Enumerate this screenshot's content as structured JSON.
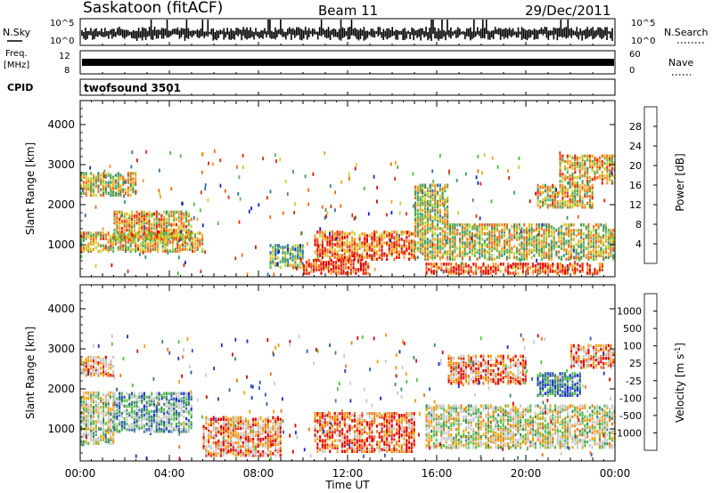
{
  "header": {
    "radar": "Saskatoon (fitACF)",
    "beam": "Beam 11",
    "date": "29/Dec/2011"
  },
  "strips": {
    "nsky_label": "N.Sky",
    "nsky_ticks": [
      "10^5",
      "10^0"
    ],
    "nsearch_label": "N.Search",
    "nsearch_ticks": [
      "10^5",
      "10^0"
    ],
    "freq_label": [
      "Freq.",
      "[MHz]"
    ],
    "freq_ticks": [
      "12",
      "8"
    ],
    "nave_label": "Nave",
    "nave_ticks": [
      "60",
      "0"
    ],
    "cpid_label": "CPID",
    "cpid_value": "twofsound 3501"
  },
  "colors": {
    "power_scale": [
      "#0b24c8",
      "#2b6fb3",
      "#3f8f6e",
      "#56b24a",
      "#c8d028",
      "#f0a020",
      "#f06a10",
      "#e8260c",
      "#e00000"
    ],
    "velocity_scale": [
      "#e00000",
      "#f07818",
      "#f0a000",
      "#c8c8c8",
      "#c8c8c8",
      "#50c040",
      "#3a8a60",
      "#2a5ab0",
      "#1a2ad0"
    ]
  },
  "chart_data": [
    {
      "type": "heatmap",
      "name": "power",
      "ylabel": "Slant Range [km]",
      "yticks": [
        "1000",
        "2000",
        "3000",
        "4000"
      ],
      "ylim": [
        200,
        4600
      ],
      "xlabel": "Time UT",
      "xticks": [
        "00:00",
        "04:00",
        "08:00",
        "12:00",
        "16:00",
        "20:00",
        "00:00"
      ],
      "colorbar_label": "Power [dB]",
      "colorbar_ticks": [
        "4",
        "8",
        "12",
        "16",
        "20",
        "24",
        "28"
      ],
      "regions": [
        {
          "t0": 0.0,
          "t1": 5.5,
          "r0": 800,
          "r1": 1300,
          "level": 0.55
        },
        {
          "t0": 0.0,
          "t1": 2.5,
          "r0": 2200,
          "r1": 2800,
          "level": 0.5
        },
        {
          "t0": 1.5,
          "t1": 5.0,
          "r0": 1100,
          "r1": 1800,
          "level": 0.6
        },
        {
          "t0": 8.5,
          "t1": 10.0,
          "r0": 400,
          "r1": 1000,
          "level": 0.35
        },
        {
          "t0": 10.5,
          "t1": 15.0,
          "r0": 600,
          "r1": 1300,
          "level": 0.75
        },
        {
          "t0": 10.0,
          "t1": 13.0,
          "r0": 250,
          "r1": 600,
          "level": 0.85
        },
        {
          "t0": 15.0,
          "t1": 24.0,
          "r0": 600,
          "r1": 1500,
          "level": 0.5
        },
        {
          "t0": 15.0,
          "t1": 16.5,
          "r0": 1500,
          "r1": 2500,
          "level": 0.45
        },
        {
          "t0": 20.5,
          "t1": 23.0,
          "r0": 1900,
          "r1": 2500,
          "level": 0.55
        },
        {
          "t0": 21.5,
          "t1": 24.0,
          "r0": 2500,
          "r1": 3200,
          "level": 0.6
        },
        {
          "t0": 15.5,
          "t1": 23.5,
          "r0": 250,
          "r1": 500,
          "level": 0.8
        }
      ]
    },
    {
      "type": "heatmap",
      "name": "velocity",
      "ylabel": "Slant Range [km]",
      "yticks": [
        "1000",
        "2000",
        "3000",
        "4000"
      ],
      "ylim": [
        200,
        4600
      ],
      "xlabel": "Time UT",
      "xticks": [
        "00:00",
        "04:00",
        "08:00",
        "12:00",
        "16:00",
        "20:00",
        "00:00"
      ],
      "colorbar_label": "Velocity [m s",
      "colorbar_label_sup": "-1",
      "colorbar_ticks": [
        "1000",
        "500",
        "100",
        "25",
        "-25",
        "-100",
        "-500",
        "-1000"
      ],
      "regions": [
        {
          "t0": 0.0,
          "t1": 1.5,
          "r0": 600,
          "r1": 1900,
          "level": 0.5
        },
        {
          "t0": 0.0,
          "t1": 1.5,
          "r0": 2300,
          "r1": 2800,
          "level": 0.3
        },
        {
          "t0": 1.5,
          "t1": 5.0,
          "r0": 900,
          "r1": 1900,
          "level": 0.65
        },
        {
          "t0": 5.5,
          "t1": 9.0,
          "r0": 300,
          "r1": 1300,
          "level": 0.25
        },
        {
          "t0": 10.5,
          "t1": 15.0,
          "r0": 400,
          "r1": 1400,
          "level": 0.15
        },
        {
          "t0": 15.5,
          "t1": 24.0,
          "r0": 500,
          "r1": 1600,
          "level": 0.45
        },
        {
          "t0": 20.5,
          "t1": 22.5,
          "r0": 1800,
          "r1": 2400,
          "level": 0.8
        },
        {
          "t0": 22.0,
          "t1": 24.0,
          "r0": 2500,
          "r1": 3100,
          "level": 0.2
        },
        {
          "t0": 16.5,
          "t1": 20.0,
          "r0": 2100,
          "r1": 2800,
          "level": 0.2
        }
      ]
    }
  ],
  "bottom_xlabel": "Time UT"
}
